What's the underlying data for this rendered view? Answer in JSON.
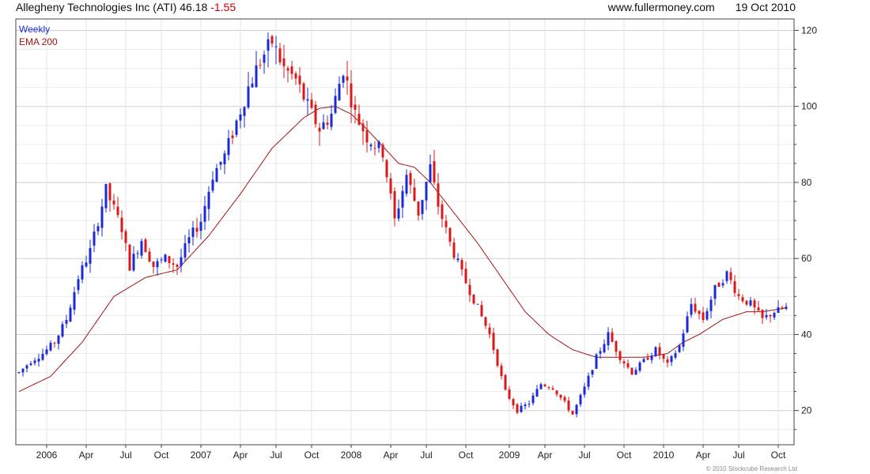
{
  "header": {
    "company": "Allegheny Technologies Inc (ATI)",
    "price": "46.18",
    "change": "-1.55",
    "website": "www.fullermoney.com",
    "date": "19 Oct 2010"
  },
  "footer": {
    "copyright": "© 2010 Stockcube Research Ltd"
  },
  "colors": {
    "up": "#1a2bd6",
    "down": "#d91a1a",
    "ema": "#a01515",
    "grid": "#d9d9d9"
  },
  "chart_data": {
    "type": "candlestick",
    "interval_label": "Weekly",
    "ema_label": "EMA 200",
    "x_tick_labels": [
      "2006",
      "Apr",
      "Jul",
      "Oct",
      "2007",
      "Apr",
      "Jul",
      "Oct",
      "2008",
      "Apr",
      "Jul",
      "Oct",
      "2009",
      "Apr",
      "Jul",
      "Oct",
      "2010",
      "Apr",
      "Jul",
      "Oct"
    ],
    "y_ticks": [
      20,
      40,
      60,
      80,
      100,
      120
    ],
    "ylim": [
      11,
      123
    ],
    "grid": true,
    "series": [
      {
        "name": "Weekly",
        "path": [
          [
            0,
            30
          ],
          [
            3,
            33
          ],
          [
            6,
            35
          ],
          [
            9,
            38
          ],
          [
            12,
            44
          ],
          [
            15,
            55
          ],
          [
            18,
            62
          ],
          [
            22,
            78
          ],
          [
            26,
            68
          ],
          [
            28,
            58
          ],
          [
            31,
            65
          ],
          [
            34,
            58
          ],
          [
            37,
            60
          ],
          [
            40,
            58
          ],
          [
            43,
            65
          ],
          [
            46,
            70
          ],
          [
            49,
            82
          ],
          [
            52,
            87
          ],
          [
            55,
            96
          ],
          [
            58,
            105
          ],
          [
            61,
            112
          ],
          [
            64,
            117
          ],
          [
            67,
            110
          ],
          [
            70,
            107
          ],
          [
            73,
            100
          ],
          [
            76,
            94
          ],
          [
            79,
            98
          ],
          [
            82,
            110
          ],
          [
            85,
            98
          ],
          [
            88,
            92
          ],
          [
            92,
            88
          ],
          [
            95,
            70
          ],
          [
            98,
            82
          ],
          [
            101,
            72
          ],
          [
            104,
            84
          ],
          [
            106,
            74
          ],
          [
            109,
            64
          ],
          [
            112,
            56
          ],
          [
            116,
            47
          ],
          [
            119,
            40
          ],
          [
            123,
            25
          ],
          [
            126,
            20
          ],
          [
            129,
            22
          ],
          [
            132,
            27
          ],
          [
            135,
            26
          ],
          [
            138,
            22
          ],
          [
            140,
            19
          ],
          [
            143,
            26
          ],
          [
            146,
            34
          ],
          [
            149,
            40
          ],
          [
            152,
            34
          ],
          [
            155,
            30
          ],
          [
            158,
            33
          ],
          [
            161,
            36
          ],
          [
            164,
            32
          ],
          [
            167,
            37
          ],
          [
            170,
            48
          ],
          [
            173,
            44
          ],
          [
            176,
            52
          ],
          [
            179,
            56
          ],
          [
            182,
            50
          ],
          [
            185,
            48
          ],
          [
            188,
            44
          ],
          [
            191,
            46
          ],
          [
            194,
            47
          ]
        ]
      },
      {
        "name": "EMA 200",
        "path": [
          [
            0,
            25
          ],
          [
            8,
            29
          ],
          [
            16,
            38
          ],
          [
            24,
            50
          ],
          [
            32,
            55
          ],
          [
            40,
            57
          ],
          [
            48,
            66
          ],
          [
            56,
            77
          ],
          [
            64,
            89
          ],
          [
            72,
            97
          ],
          [
            76,
            99.5
          ],
          [
            80,
            100
          ],
          [
            84,
            98
          ],
          [
            88,
            94
          ],
          [
            96,
            85
          ],
          [
            100,
            84
          ],
          [
            104,
            80
          ],
          [
            110,
            72
          ],
          [
            116,
            64
          ],
          [
            122,
            55
          ],
          [
            128,
            46
          ],
          [
            134,
            40
          ],
          [
            140,
            36
          ],
          [
            146,
            34
          ],
          [
            152,
            34
          ],
          [
            158,
            34
          ],
          [
            164,
            35
          ],
          [
            168,
            38
          ],
          [
            172,
            40
          ],
          [
            178,
            44
          ],
          [
            184,
            46
          ],
          [
            188,
            46
          ],
          [
            194,
            47
          ]
        ]
      }
    ]
  }
}
